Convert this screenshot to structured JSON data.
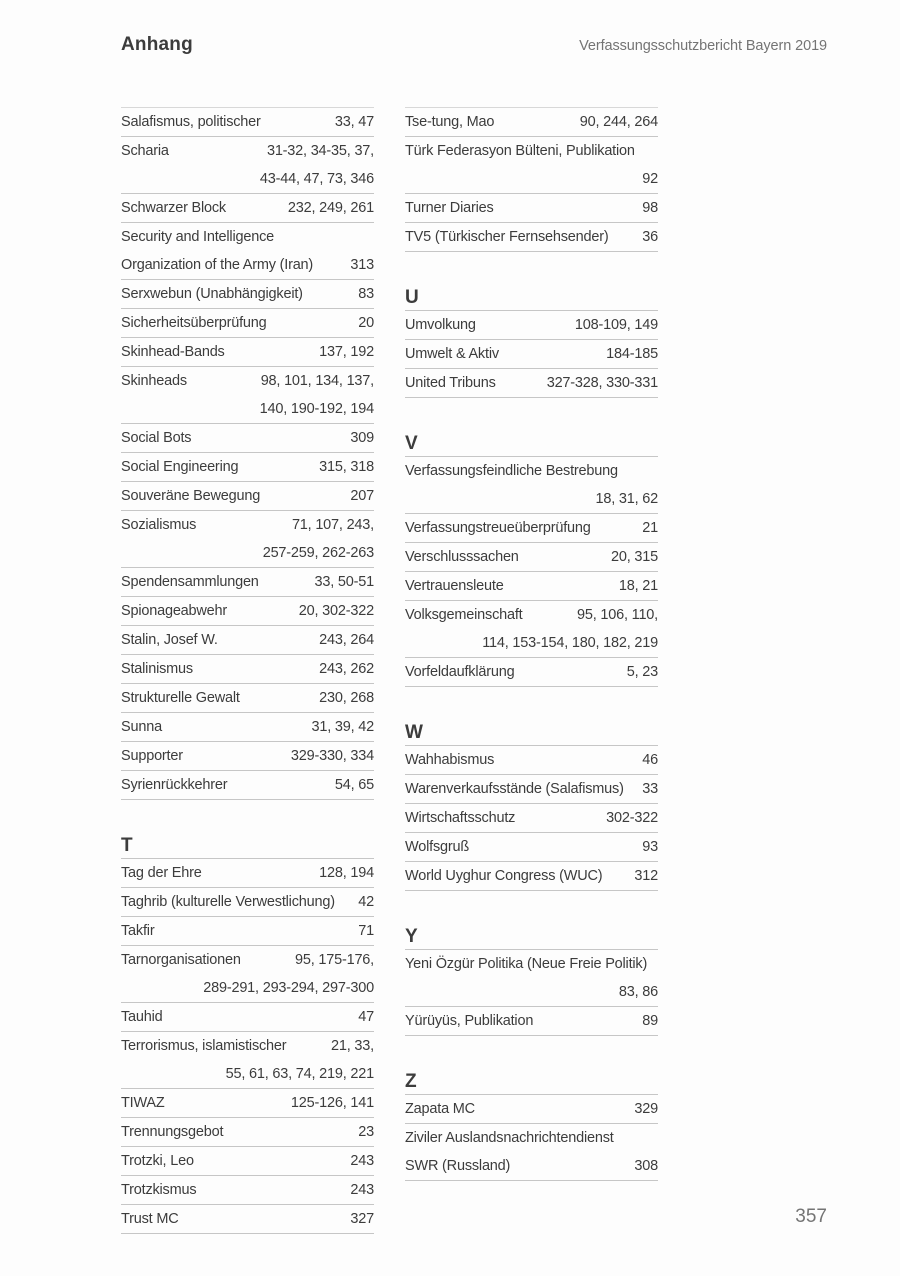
{
  "header": {
    "title": "Anhang",
    "report": "Verfassungsschutzbericht Bayern 2019"
  },
  "footer": {
    "page_number": "357"
  },
  "colors": {
    "text": "#3c3c3c",
    "muted": "#747474",
    "rule": "#c6c6c6"
  },
  "index": {
    "left_column": [
      {
        "letter": "",
        "entries": [
          {
            "rows": [
              [
                "Salafismus, politischer",
                "33, 47"
              ]
            ]
          },
          {
            "rows": [
              [
                "Scharia",
                "31-32, 34-35, 37,"
              ],
              [
                "",
                "43-44, 47, 73, 346"
              ]
            ]
          },
          {
            "rows": [
              [
                "Schwarzer Block",
                "232, 249, 261"
              ]
            ]
          },
          {
            "rows": [
              [
                "Security and Intelligence",
                ""
              ],
              [
                "Organization of the Army (Iran)",
                "313"
              ]
            ]
          },
          {
            "rows": [
              [
                "Serxwebun (Unabhängigkeit)",
                "83"
              ]
            ]
          },
          {
            "rows": [
              [
                "Sicherheitsüberprüfung",
                "20"
              ]
            ]
          },
          {
            "rows": [
              [
                "Skinhead-Bands",
                "137, 192"
              ]
            ]
          },
          {
            "rows": [
              [
                "Skinheads",
                "98, 101, 134, 137,"
              ],
              [
                "",
                "140, 190-192, 194"
              ]
            ]
          },
          {
            "rows": [
              [
                "Social Bots",
                "309"
              ]
            ]
          },
          {
            "rows": [
              [
                "Social Engineering",
                "315, 318"
              ]
            ]
          },
          {
            "rows": [
              [
                "Souveräne Bewegung",
                "207"
              ]
            ]
          },
          {
            "rows": [
              [
                "Sozialismus",
                "71, 107, 243,"
              ],
              [
                "",
                "257-259, 262-263"
              ]
            ]
          },
          {
            "rows": [
              [
                "Spendensammlungen",
                "33, 50-51"
              ]
            ]
          },
          {
            "rows": [
              [
                "Spionageabwehr",
                "20, 302-322"
              ]
            ]
          },
          {
            "rows": [
              [
                "Stalin, Josef W.",
                "243, 264"
              ]
            ]
          },
          {
            "rows": [
              [
                "Stalinismus",
                "243, 262"
              ]
            ]
          },
          {
            "rows": [
              [
                "Strukturelle Gewalt",
                "230, 268"
              ]
            ]
          },
          {
            "rows": [
              [
                "Sunna",
                "31, 39, 42"
              ]
            ]
          },
          {
            "rows": [
              [
                "Supporter",
                "329-330, 334"
              ]
            ]
          },
          {
            "rows": [
              [
                "Syrienrückkehrer",
                "54, 65"
              ]
            ]
          }
        ]
      },
      {
        "letter": "T",
        "entries": [
          {
            "rows": [
              [
                "Tag der Ehre",
                "128, 194"
              ]
            ]
          },
          {
            "rows": [
              [
                "Taghrib (kulturelle Verwestlichung)",
                "42"
              ]
            ]
          },
          {
            "rows": [
              [
                "Takfir",
                "71"
              ]
            ]
          },
          {
            "rows": [
              [
                "Tarnorganisationen",
                "95, 175-176,"
              ],
              [
                "",
                "289-291, 293-294, 297-300"
              ]
            ]
          },
          {
            "rows": [
              [
                "Tauhid",
                "47"
              ]
            ]
          },
          {
            "rows": [
              [
                "Terrorismus, islamistischer",
                "21, 33,"
              ],
              [
                "",
                "55, 61, 63, 74, 219, 221"
              ]
            ]
          },
          {
            "rows": [
              [
                "TIWAZ",
                "125-126, 141"
              ]
            ]
          },
          {
            "rows": [
              [
                "Trennungsgebot",
                "23"
              ]
            ]
          },
          {
            "rows": [
              [
                "Trotzki, Leo",
                "243"
              ]
            ]
          },
          {
            "rows": [
              [
                "Trotzkismus",
                "243"
              ]
            ]
          },
          {
            "rows": [
              [
                "Trust MC",
                "327"
              ]
            ]
          }
        ]
      }
    ],
    "right_column": [
      {
        "letter": "",
        "entries": [
          {
            "rows": [
              [
                "Tse-tung, Mao",
                "90, 244, 264"
              ]
            ]
          },
          {
            "rows": [
              [
                "Türk Federasyon Bülteni, Publikation",
                ""
              ],
              [
                "",
                "92"
              ]
            ]
          },
          {
            "rows": [
              [
                "Turner Diaries",
                "98"
              ]
            ]
          },
          {
            "rows": [
              [
                "TV5 (Türkischer Fernsehsender)",
                "36"
              ]
            ]
          }
        ]
      },
      {
        "letter": "U",
        "entries": [
          {
            "rows": [
              [
                "Umvolkung",
                "108-109, 149"
              ]
            ]
          },
          {
            "rows": [
              [
                "Umwelt & Aktiv",
                "184-185"
              ]
            ]
          },
          {
            "rows": [
              [
                "United Tribuns",
                "327-328, 330-331"
              ]
            ]
          }
        ]
      },
      {
        "letter": "V",
        "entries": [
          {
            "rows": [
              [
                "Verfassungsfeindliche Bestrebung",
                ""
              ],
              [
                "",
                "18, 31, 62"
              ]
            ]
          },
          {
            "rows": [
              [
                "Verfassungstreueüberprüfung",
                "21"
              ]
            ]
          },
          {
            "rows": [
              [
                "Verschlusssachen",
                "20, 315"
              ]
            ]
          },
          {
            "rows": [
              [
                "Vertrauensleute",
                "18, 21"
              ]
            ]
          },
          {
            "rows": [
              [
                "Volksgemeinschaft",
                "95, 106, 110,"
              ],
              [
                "",
                "114, 153-154, 180, 182, 219"
              ]
            ]
          },
          {
            "rows": [
              [
                "Vorfeldaufklärung",
                "5, 23"
              ]
            ]
          }
        ]
      },
      {
        "letter": "W",
        "entries": [
          {
            "rows": [
              [
                "Wahhabismus",
                "46"
              ]
            ]
          },
          {
            "rows": [
              [
                "Warenverkaufsstände (Salafismus)",
                "33"
              ]
            ]
          },
          {
            "rows": [
              [
                "Wirtschaftsschutz",
                "302-322"
              ]
            ]
          },
          {
            "rows": [
              [
                "Wolfsgruß",
                "93"
              ]
            ]
          },
          {
            "rows": [
              [
                "World Uyghur Congress (WUC)",
                "312"
              ]
            ]
          }
        ]
      },
      {
        "letter": "Y",
        "entries": [
          {
            "rows": [
              [
                "Yeni Özgür Politika (Neue Freie Politik)",
                ""
              ],
              [
                "",
                "83, 86"
              ]
            ]
          },
          {
            "rows": [
              [
                "Yürüyüs, Publikation",
                "89"
              ]
            ]
          }
        ]
      },
      {
        "letter": "Z",
        "entries": [
          {
            "rows": [
              [
                "Zapata MC",
                "329"
              ]
            ]
          },
          {
            "rows": [
              [
                "Ziviler Auslandsnachrichtendienst",
                ""
              ],
              [
                "SWR (Russland)",
                "308"
              ]
            ]
          }
        ]
      }
    ]
  }
}
